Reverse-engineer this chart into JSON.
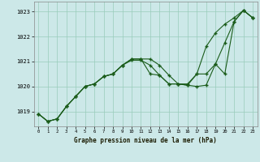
{
  "title": "Graphe pression niveau de la mer (hPa)",
  "background_color": "#cce8e8",
  "grid_color": "#99ccbb",
  "line_color": "#1a5c1a",
  "marker_color": "#1a5c1a",
  "xlim": [
    -0.5,
    23.5
  ],
  "ylim": [
    1018.4,
    1023.4
  ],
  "yticks": [
    1019,
    1020,
    1021,
    1022,
    1023
  ],
  "xticks": [
    0,
    1,
    2,
    3,
    4,
    5,
    6,
    7,
    8,
    9,
    10,
    11,
    12,
    13,
    14,
    15,
    16,
    17,
    18,
    19,
    20,
    21,
    22,
    23
  ],
  "series": [
    [
      1018.9,
      1018.6,
      1018.7,
      1019.2,
      1019.6,
      1020.0,
      1020.1,
      1020.4,
      1020.5,
      1020.85,
      1021.05,
      1021.05,
      1020.85,
      1020.45,
      1020.1,
      1020.1,
      1020.05,
      1020.0,
      1020.05,
      1020.9,
      1021.75,
      1022.6,
      1023.05,
      1022.75
    ],
    [
      1018.9,
      1018.6,
      1018.7,
      1019.2,
      1019.6,
      1020.0,
      1020.1,
      1020.4,
      1020.5,
      1020.85,
      1021.1,
      1021.1,
      1020.5,
      1020.45,
      1020.1,
      1020.1,
      1020.05,
      1020.5,
      1021.6,
      1022.15,
      1022.5,
      1022.75,
      1023.05,
      1022.75
    ],
    [
      1018.9,
      1018.6,
      1018.7,
      1019.2,
      1019.6,
      1020.0,
      1020.1,
      1020.4,
      1020.5,
      1020.85,
      1021.1,
      1021.1,
      1021.1,
      1020.85,
      1020.45,
      1020.1,
      1020.1,
      1020.5,
      1020.5,
      1020.9,
      1020.5,
      1022.6,
      1023.05,
      1022.75
    ]
  ]
}
